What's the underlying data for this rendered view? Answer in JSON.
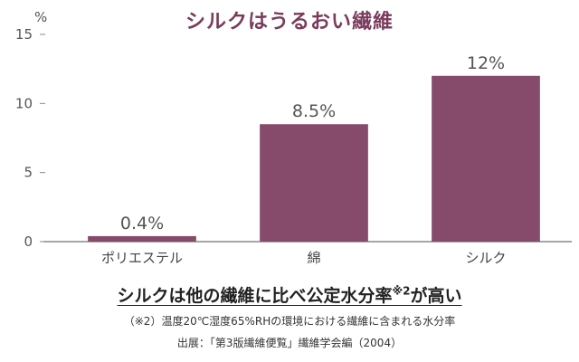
{
  "chart_data": {
    "type": "bar",
    "title": "シルクはうるおい繊維",
    "ylabel": "%",
    "xlabel": "",
    "ylim": [
      0,
      15
    ],
    "yticks": [
      0,
      5,
      10,
      15
    ],
    "categories": [
      "ポリエステル",
      "綿",
      "シルク"
    ],
    "values": [
      0.4,
      8.5,
      12
    ],
    "data_labels": [
      "0.4%",
      "8.5%",
      "12%"
    ],
    "grid": false,
    "bar_color": "#864a6b"
  },
  "headline": {
    "main": "シルクは他の繊維に比べ公定水分率",
    "sup": "※2",
    "tail": "が高い"
  },
  "footnote": "（※2）温度20℃湿度65%RHの環境における繊維に含まれる水分率",
  "source": "出展：「第3版繊維便覧」繊維学会編（2004）"
}
